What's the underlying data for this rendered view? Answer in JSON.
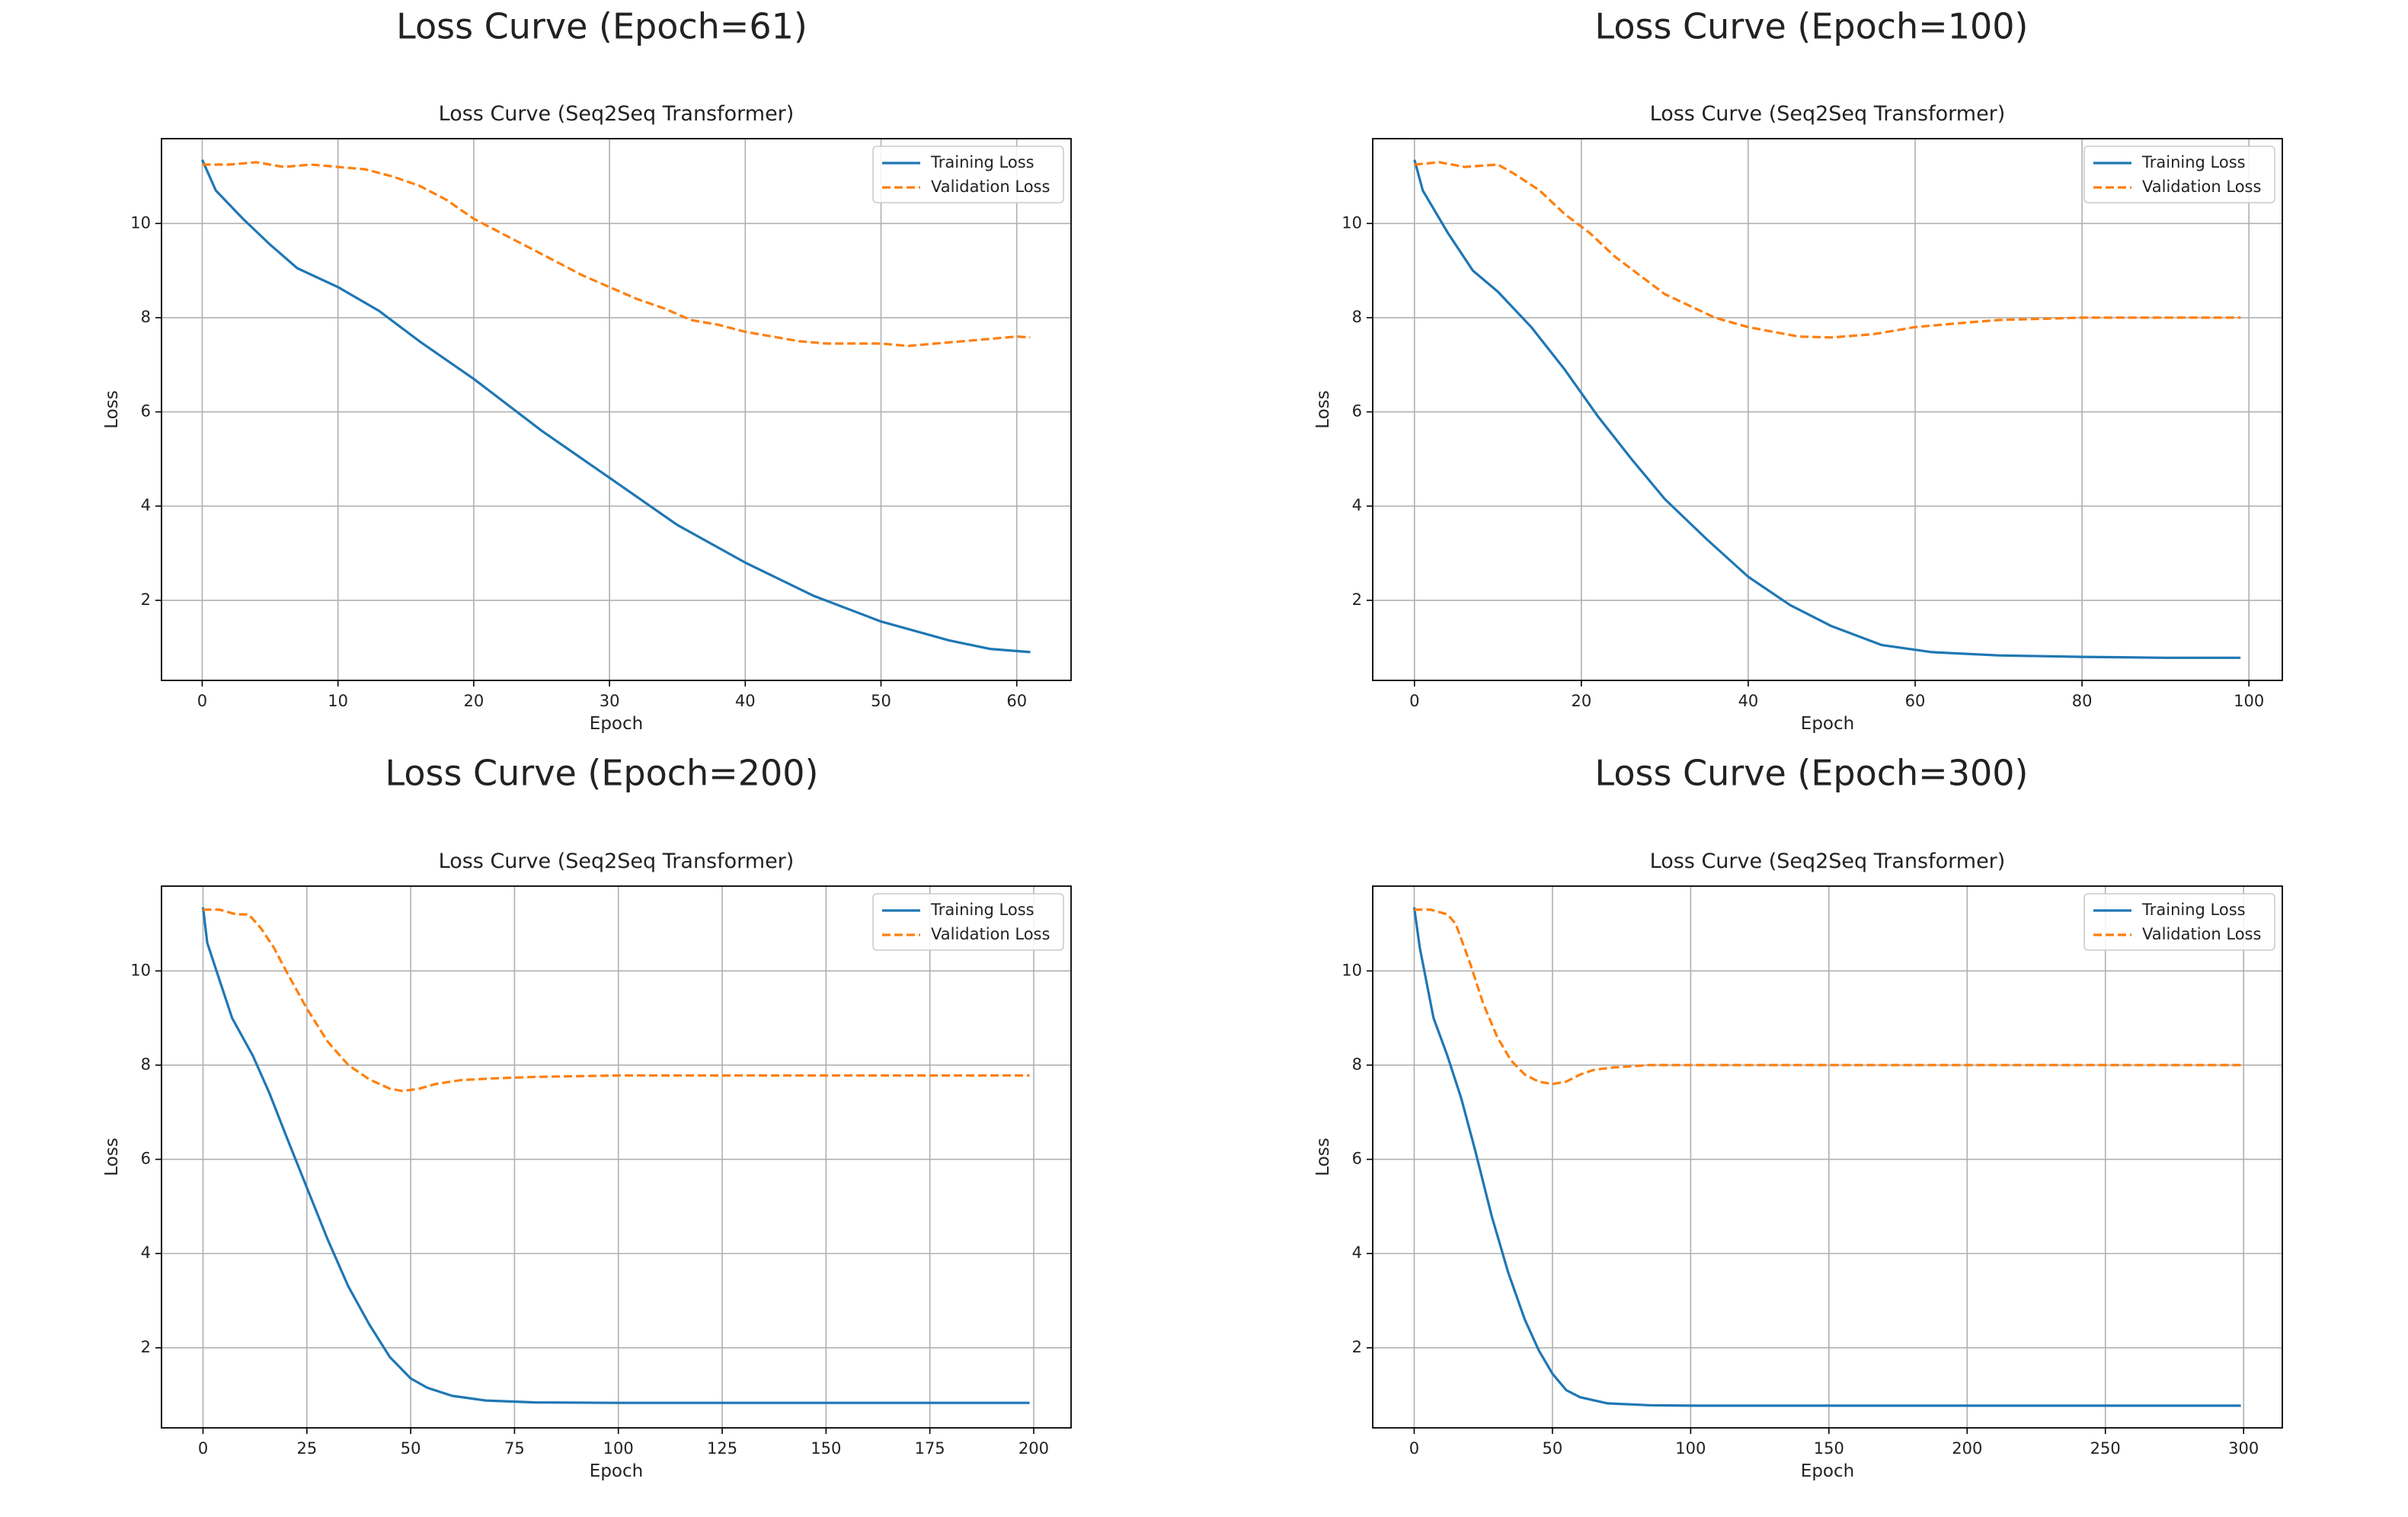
{
  "figure": {
    "background": "#ffffff",
    "colors": {
      "training": "#1f77b4",
      "validation": "#ff7f0e",
      "grid": "#b0b0b0",
      "axes": "#000000"
    }
  },
  "chart_data": [
    {
      "type": "line",
      "suptitle": "Loss Curve (Epoch=61)",
      "title": "Loss Curve (Seq2Seq Transformer)",
      "xlabel": "Epoch",
      "ylabel": "Loss",
      "xlim": [
        -3,
        64
      ],
      "ylim": [
        0.3,
        11.8
      ],
      "xticks": [
        0,
        10,
        20,
        30,
        40,
        50,
        60
      ],
      "yticks": [
        2,
        4,
        6,
        8,
        10
      ],
      "grid": true,
      "legend": "upper right",
      "series": [
        {
          "name": "Training Loss",
          "style": "solid",
          "color": "#1f77b4",
          "points": [
            [
              0,
              11.35
            ],
            [
              1,
              10.7
            ],
            [
              3,
              10.1
            ],
            [
              5,
              9.55
            ],
            [
              7,
              9.05
            ],
            [
              10,
              8.65
            ],
            [
              13,
              8.15
            ],
            [
              16,
              7.5
            ],
            [
              20,
              6.7
            ],
            [
              25,
              5.6
            ],
            [
              30,
              4.6
            ],
            [
              35,
              3.6
            ],
            [
              40,
              2.8
            ],
            [
              45,
              2.1
            ],
            [
              50,
              1.55
            ],
            [
              55,
              1.15
            ],
            [
              58,
              0.97
            ],
            [
              61,
              0.9
            ]
          ]
        },
        {
          "name": "Validation Loss",
          "style": "dashed",
          "color": "#ff7f0e",
          "points": [
            [
              0,
              11.25
            ],
            [
              2,
              11.25
            ],
            [
              4,
              11.3
            ],
            [
              6,
              11.2
            ],
            [
              8,
              11.25
            ],
            [
              10,
              11.2
            ],
            [
              12,
              11.15
            ],
            [
              14,
              11.0
            ],
            [
              16,
              10.8
            ],
            [
              18,
              10.5
            ],
            [
              20,
              10.1
            ],
            [
              22,
              9.8
            ],
            [
              24,
              9.5
            ],
            [
              26,
              9.2
            ],
            [
              28,
              8.9
            ],
            [
              30,
              8.65
            ],
            [
              32,
              8.4
            ],
            [
              34,
              8.2
            ],
            [
              36,
              7.95
            ],
            [
              38,
              7.85
            ],
            [
              40,
              7.7
            ],
            [
              42,
              7.6
            ],
            [
              44,
              7.5
            ],
            [
              46,
              7.45
            ],
            [
              48,
              7.45
            ],
            [
              50,
              7.45
            ],
            [
              52,
              7.4
            ],
            [
              54,
              7.45
            ],
            [
              56,
              7.5
            ],
            [
              58,
              7.55
            ],
            [
              60,
              7.6
            ],
            [
              61,
              7.58
            ]
          ]
        }
      ]
    },
    {
      "type": "line",
      "suptitle": "Loss Curve (Epoch=100)",
      "title": "Loss Curve (Seq2Seq Transformer)",
      "xlabel": "Epoch",
      "ylabel": "Loss",
      "xlim": [
        -5,
        104
      ],
      "ylim": [
        0.3,
        11.8
      ],
      "xticks": [
        0,
        20,
        40,
        60,
        80,
        100
      ],
      "yticks": [
        2,
        4,
        6,
        8,
        10
      ],
      "grid": true,
      "legend": "upper right",
      "series": [
        {
          "name": "Training Loss",
          "style": "solid",
          "color": "#1f77b4",
          "points": [
            [
              0,
              11.35
            ],
            [
              1,
              10.7
            ],
            [
              4,
              9.8
            ],
            [
              7,
              9.0
            ],
            [
              10,
              8.55
            ],
            [
              14,
              7.8
            ],
            [
              18,
              6.9
            ],
            [
              22,
              5.9
            ],
            [
              26,
              5.0
            ],
            [
              30,
              4.15
            ],
            [
              35,
              3.3
            ],
            [
              40,
              2.5
            ],
            [
              45,
              1.9
            ],
            [
              50,
              1.45
            ],
            [
              56,
              1.05
            ],
            [
              62,
              0.9
            ],
            [
              70,
              0.83
            ],
            [
              80,
              0.8
            ],
            [
              90,
              0.78
            ],
            [
              99,
              0.78
            ]
          ]
        },
        {
          "name": "Validation Loss",
          "style": "dashed",
          "color": "#ff7f0e",
          "points": [
            [
              0,
              11.25
            ],
            [
              3,
              11.3
            ],
            [
              6,
              11.2
            ],
            [
              10,
              11.25
            ],
            [
              12,
              11.05
            ],
            [
              15,
              10.7
            ],
            [
              18,
              10.2
            ],
            [
              21,
              9.8
            ],
            [
              24,
              9.3
            ],
            [
              27,
              8.9
            ],
            [
              30,
              8.5
            ],
            [
              33,
              8.25
            ],
            [
              36,
              8.0
            ],
            [
              40,
              7.8
            ],
            [
              43,
              7.7
            ],
            [
              46,
              7.6
            ],
            [
              50,
              7.58
            ],
            [
              55,
              7.65
            ],
            [
              60,
              7.8
            ],
            [
              65,
              7.88
            ],
            [
              70,
              7.95
            ],
            [
              80,
              8.0
            ],
            [
              90,
              8.0
            ],
            [
              99,
              8.0
            ]
          ]
        }
      ]
    },
    {
      "type": "line",
      "suptitle": "Loss Curve (Epoch=200)",
      "title": "Loss Curve (Seq2Seq Transformer)",
      "xlabel": "Epoch",
      "ylabel": "Loss",
      "xlim": [
        -10,
        209
      ],
      "ylim": [
        0.3,
        11.8
      ],
      "xticks": [
        0,
        25,
        50,
        75,
        100,
        125,
        150,
        175,
        200
      ],
      "yticks": [
        2,
        4,
        6,
        8,
        10
      ],
      "grid": true,
      "legend": "upper right",
      "series": [
        {
          "name": "Training Loss",
          "style": "solid",
          "color": "#1f77b4",
          "points": [
            [
              0,
              11.35
            ],
            [
              1,
              10.6
            ],
            [
              4,
              9.8
            ],
            [
              7,
              9.0
            ],
            [
              12,
              8.2
            ],
            [
              16,
              7.4
            ],
            [
              20,
              6.5
            ],
            [
              25,
              5.4
            ],
            [
              30,
              4.3
            ],
            [
              35,
              3.3
            ],
            [
              40,
              2.5
            ],
            [
              45,
              1.8
            ],
            [
              50,
              1.35
            ],
            [
              54,
              1.15
            ],
            [
              60,
              0.98
            ],
            [
              68,
              0.88
            ],
            [
              80,
              0.84
            ],
            [
              100,
              0.83
            ],
            [
              150,
              0.83
            ],
            [
              199,
              0.83
            ]
          ]
        },
        {
          "name": "Validation Loss",
          "style": "dashed",
          "color": "#ff7f0e",
          "points": [
            [
              0,
              11.3
            ],
            [
              4,
              11.3
            ],
            [
              8,
              11.2
            ],
            [
              11,
              11.2
            ],
            [
              14,
              10.9
            ],
            [
              17,
              10.5
            ],
            [
              20,
              10.0
            ],
            [
              25,
              9.2
            ],
            [
              30,
              8.5
            ],
            [
              35,
              8.0
            ],
            [
              40,
              7.7
            ],
            [
              45,
              7.5
            ],
            [
              48,
              7.45
            ],
            [
              52,
              7.5
            ],
            [
              56,
              7.6
            ],
            [
              62,
              7.68
            ],
            [
              70,
              7.72
            ],
            [
              80,
              7.75
            ],
            [
              100,
              7.78
            ],
            [
              150,
              7.78
            ],
            [
              199,
              7.78
            ]
          ]
        }
      ]
    },
    {
      "type": "line",
      "suptitle": "Loss Curve (Epoch=300)",
      "title": "Loss Curve (Seq2Seq Transformer)",
      "xlabel": "Epoch",
      "ylabel": "Loss",
      "xlim": [
        -15,
        314
      ],
      "ylim": [
        0.3,
        11.8
      ],
      "xticks": [
        0,
        50,
        100,
        150,
        200,
        250,
        300
      ],
      "yticks": [
        2,
        4,
        6,
        8,
        10
      ],
      "grid": true,
      "legend": "upper right",
      "series": [
        {
          "name": "Training Loss",
          "style": "solid",
          "color": "#1f77b4",
          "points": [
            [
              0,
              11.35
            ],
            [
              2,
              10.5
            ],
            [
              7,
              9.0
            ],
            [
              12,
              8.2
            ],
            [
              17,
              7.3
            ],
            [
              22,
              6.2
            ],
            [
              28,
              4.8
            ],
            [
              34,
              3.6
            ],
            [
              40,
              2.6
            ],
            [
              45,
              1.95
            ],
            [
              50,
              1.45
            ],
            [
              55,
              1.1
            ],
            [
              60,
              0.95
            ],
            [
              70,
              0.82
            ],
            [
              85,
              0.78
            ],
            [
              100,
              0.77
            ],
            [
              200,
              0.77
            ],
            [
              299,
              0.77
            ]
          ]
        },
        {
          "name": "Validation Loss",
          "style": "dashed",
          "color": "#ff7f0e",
          "points": [
            [
              0,
              11.3
            ],
            [
              6,
              11.3
            ],
            [
              12,
              11.2
            ],
            [
              15,
              11.0
            ],
            [
              20,
              10.2
            ],
            [
              25,
              9.3
            ],
            [
              30,
              8.6
            ],
            [
              35,
              8.1
            ],
            [
              40,
              7.8
            ],
            [
              45,
              7.65
            ],
            [
              50,
              7.6
            ],
            [
              55,
              7.65
            ],
            [
              60,
              7.8
            ],
            [
              65,
              7.9
            ],
            [
              72,
              7.95
            ],
            [
              85,
              8.0
            ],
            [
              100,
              8.0
            ],
            [
              150,
              8.0
            ],
            [
              200,
              8.0
            ],
            [
              299,
              8.0
            ]
          ]
        }
      ]
    }
  ]
}
